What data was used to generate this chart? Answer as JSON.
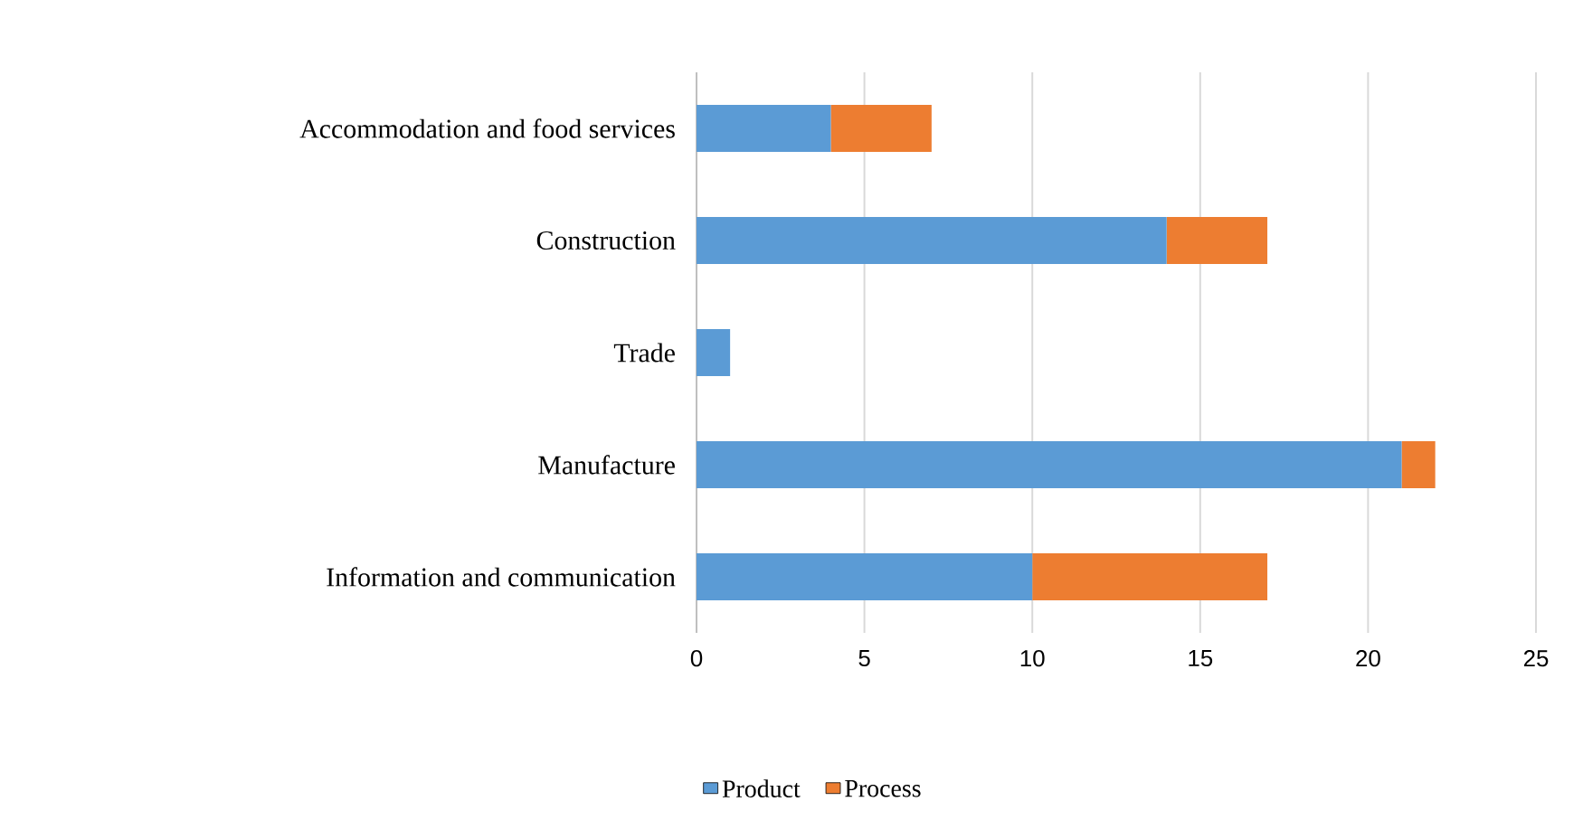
{
  "chart_data": {
    "type": "bar",
    "orientation": "horizontal",
    "stacked": true,
    "categories": [
      "Accommodation and food services",
      "Construction",
      "Trade",
      "Manufacture",
      "Information and communication"
    ],
    "series": [
      {
        "name": "Product",
        "color": "#5b9bd5",
        "values": [
          4,
          14,
          1,
          21,
          10
        ]
      },
      {
        "name": "Process",
        "color": "#ed7d31",
        "values": [
          3,
          3,
          0,
          1,
          7
        ]
      }
    ],
    "xlim": [
      0,
      25
    ],
    "xticks": [
      0,
      5,
      10,
      15,
      20,
      25
    ],
    "grid": "x",
    "legend": "bottom"
  }
}
